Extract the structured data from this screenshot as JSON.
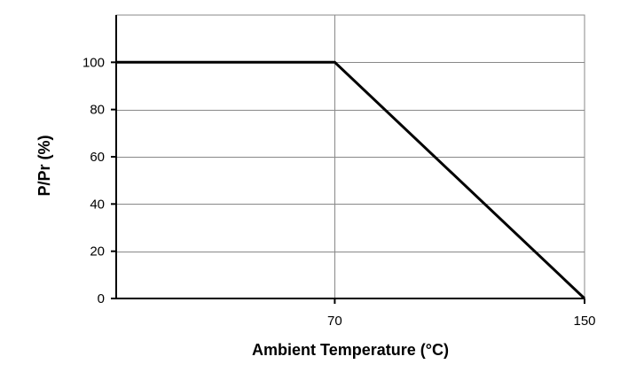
{
  "chart_data": {
    "type": "line",
    "title": "",
    "xlabel": "Ambient Temperature (°C)",
    "ylabel": "P/Pr (%)",
    "xlim": [
      0,
      150
    ],
    "ylim": [
      0,
      120
    ],
    "x_ticks": [
      70,
      150
    ],
    "x_tick_labels": [
      "70",
      "150"
    ],
    "y_ticks": [
      0,
      20,
      40,
      60,
      80,
      100
    ],
    "y_tick_labels": [
      "0",
      "20",
      "40",
      "60",
      "80",
      "100"
    ],
    "grid": true,
    "legend": "none",
    "series": [
      {
        "x": [
          0,
          70,
          150
        ],
        "y": [
          100,
          100,
          0
        ]
      }
    ],
    "colors": {
      "line": "#000000",
      "grid": "#888888",
      "axis": "#000000"
    }
  }
}
